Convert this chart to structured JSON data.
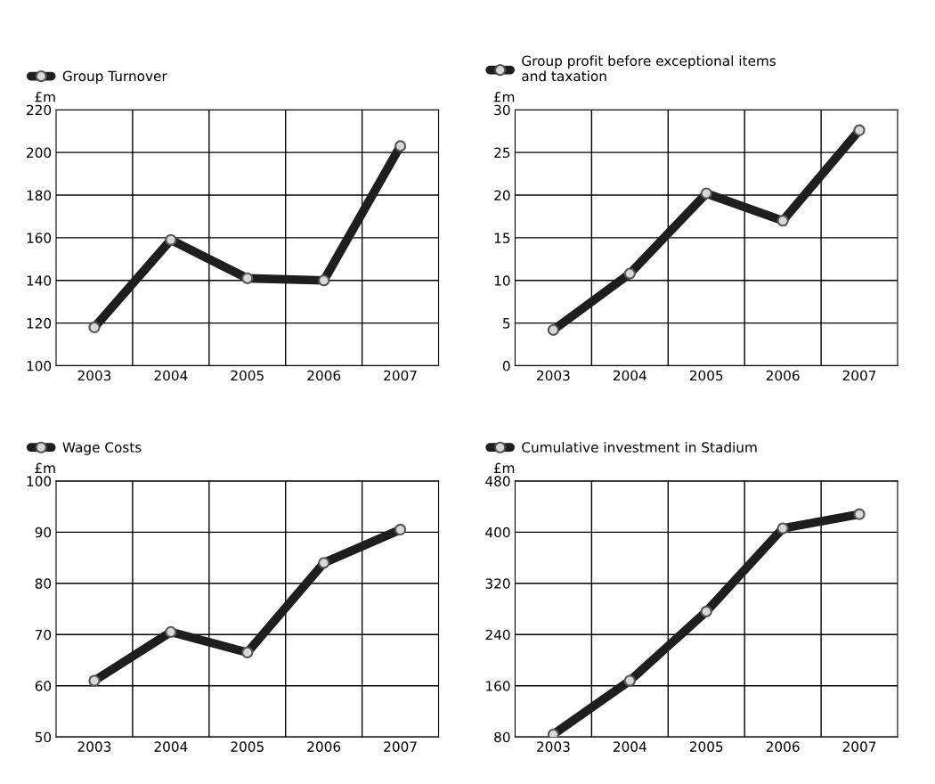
{
  "chart_data": [
    {
      "type": "line",
      "ylabel": "£m",
      "categories": [
        "2003",
        "2004",
        "2005",
        "2006",
        "2007"
      ],
      "ylim": [
        100,
        220
      ],
      "yticks": [
        100,
        120,
        140,
        160,
        180,
        200,
        220
      ],
      "grid": true,
      "legend": "top left",
      "marker": "circle",
      "line_style": "solid",
      "series": [
        {
          "name": "Group Turnover",
          "color": "#1e1e1e",
          "values": [
            118,
            159,
            141,
            140,
            203
          ]
        }
      ]
    },
    {
      "type": "line",
      "ylabel": "£m",
      "categories": [
        "2003",
        "2004",
        "2005",
        "2006",
        "2007"
      ],
      "ylim": [
        0,
        30
      ],
      "yticks": [
        0,
        5,
        10,
        15,
        20,
        25,
        30
      ],
      "grid": true,
      "legend": "top left",
      "marker": "circle",
      "line_style": "solid",
      "series": [
        {
          "name": "Group profit before exceptional items\nand taxation",
          "color": "#1e1e1e",
          "values": [
            4.2,
            10.8,
            20.2,
            17,
            27.6
          ]
        }
      ]
    },
    {
      "type": "line",
      "ylabel": "£m",
      "categories": [
        "2003",
        "2004",
        "2005",
        "2006",
        "2007"
      ],
      "ylim": [
        50,
        100
      ],
      "yticks": [
        50,
        60,
        70,
        80,
        90,
        100
      ],
      "grid": true,
      "legend": "top left",
      "marker": "circle",
      "line_style": "solid",
      "series": [
        {
          "name": "Wage Costs",
          "color": "#1e1e1e",
          "values": [
            61,
            70.5,
            66.5,
            84,
            90.5
          ]
        }
      ]
    },
    {
      "type": "line",
      "ylabel": "£m",
      "categories": [
        "2003",
        "2004",
        "2005",
        "2006",
        "2007"
      ],
      "ylim": [
        80,
        480
      ],
      "yticks": [
        80,
        160,
        240,
        320,
        400,
        480
      ],
      "grid": true,
      "legend": "top left",
      "marker": "circle",
      "line_style": "solid",
      "series": [
        {
          "name": "Cumulative investment in Stadium",
          "color": "#1e1e1e",
          "values": [
            84,
            168,
            276,
            406,
            428
          ]
        }
      ]
    }
  ]
}
